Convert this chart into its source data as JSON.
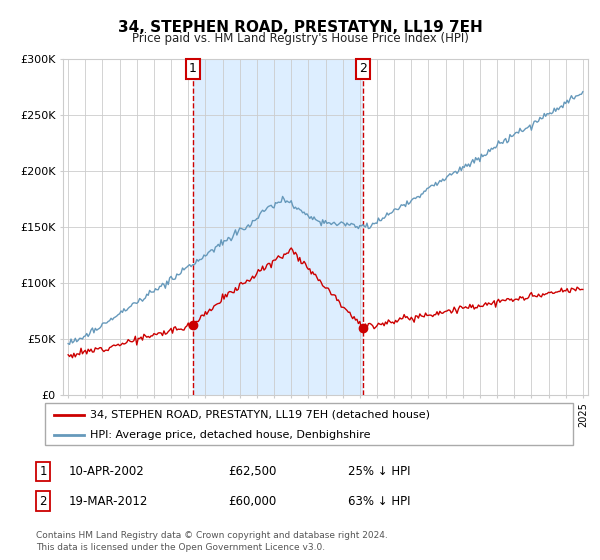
{
  "title": "34, STEPHEN ROAD, PRESTATYN, LL19 7EH",
  "subtitle": "Price paid vs. HM Land Registry's House Price Index (HPI)",
  "legend_line1": "34, STEPHEN ROAD, PRESTATYN, LL19 7EH (detached house)",
  "legend_line2": "HPI: Average price, detached house, Denbighshire",
  "annotation1_date": "10-APR-2002",
  "annotation1_price": 62500,
  "annotation1_pct": "25% ↓ HPI",
  "annotation2_date": "19-MAR-2012",
  "annotation2_price": 60000,
  "annotation2_pct": "63% ↓ HPI",
  "footer": "Contains HM Land Registry data © Crown copyright and database right 2024.\nThis data is licensed under the Open Government Licence v3.0.",
  "sale1_year": 2002.28,
  "sale2_year": 2012.21,
  "plot_bg_color": "#ffffff",
  "shade_color": "#ddeeff",
  "line_red_color": "#cc0000",
  "line_blue_color": "#6699bb",
  "vline_color": "#cc0000",
  "ylim": [
    0,
    300000
  ],
  "xlim_start": 1994.7,
  "xlim_end": 2025.3
}
